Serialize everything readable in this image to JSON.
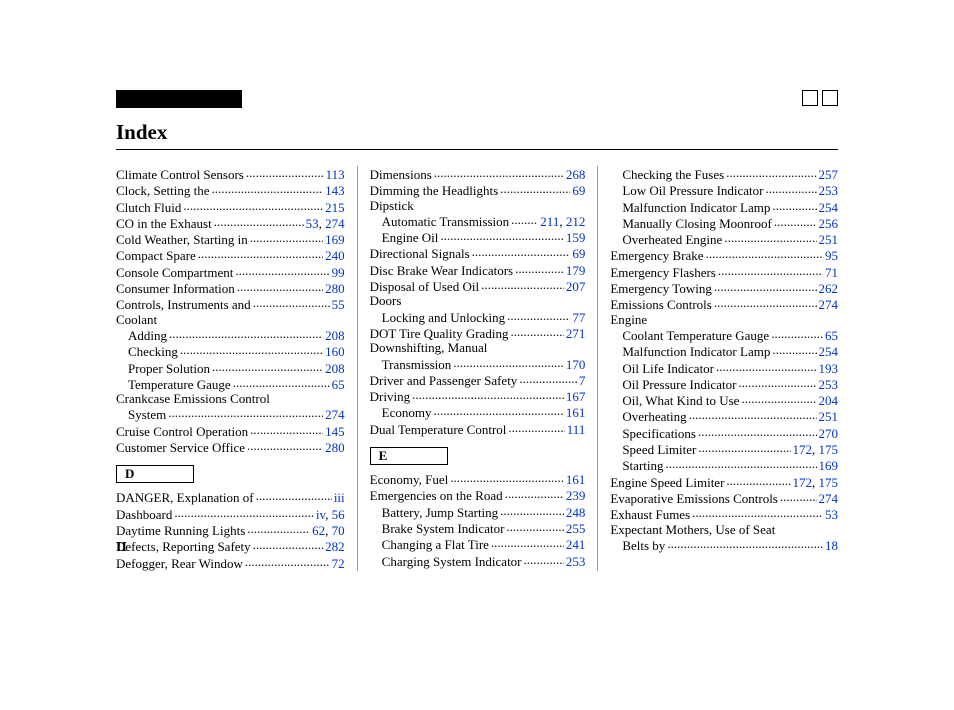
{
  "title": "Index",
  "pageNumber": "II",
  "link_color": "#0033cc",
  "columns": [
    [
      {
        "type": "entry",
        "label": "Climate Control Sensors",
        "pages": [
          "113"
        ]
      },
      {
        "type": "entry",
        "label": "Clock, Setting the",
        "pages": [
          "143"
        ]
      },
      {
        "type": "entry",
        "label": "Clutch Fluid",
        "pages": [
          "215"
        ]
      },
      {
        "type": "entry",
        "label": "CO in the Exhaust",
        "pages": [
          "53",
          "274"
        ]
      },
      {
        "type": "entry",
        "label": "Cold Weather, Starting in",
        "pages": [
          "169"
        ]
      },
      {
        "type": "entry",
        "label": "Compact Spare",
        "pages": [
          "240"
        ]
      },
      {
        "type": "entry",
        "label": "Console Compartment",
        "pages": [
          "99"
        ]
      },
      {
        "type": "entry",
        "label": "Consumer Information",
        "pages": [
          "280"
        ]
      },
      {
        "type": "entry",
        "label": "Controls, Instruments and",
        "pages": [
          "55"
        ]
      },
      {
        "type": "head",
        "label": "Coolant"
      },
      {
        "type": "entry",
        "indent": 1,
        "label": "Adding",
        "pages": [
          "208"
        ]
      },
      {
        "type": "entry",
        "indent": 1,
        "label": "Checking",
        "pages": [
          "160"
        ]
      },
      {
        "type": "entry",
        "indent": 1,
        "label": "Proper Solution",
        "pages": [
          "208"
        ]
      },
      {
        "type": "entry",
        "indent": 1,
        "label": "Temperature Gauge",
        "pages": [
          "65"
        ]
      },
      {
        "type": "head",
        "label": "Crankcase Emissions Control"
      },
      {
        "type": "entry",
        "indent": 1,
        "label": "System",
        "pages": [
          "274"
        ]
      },
      {
        "type": "entry",
        "label": "Cruise Control Operation",
        "pages": [
          "145"
        ]
      },
      {
        "type": "entry",
        "label": "Customer Service Office",
        "pages": [
          "280"
        ]
      },
      {
        "type": "section",
        "label": "D"
      },
      {
        "type": "entry",
        "label": "DANGER, Explanation of",
        "pages": [
          "iii"
        ]
      },
      {
        "type": "entry",
        "label": "Dashboard",
        "pages": [
          "iv",
          "56"
        ]
      },
      {
        "type": "entry",
        "label": "Daytime Running Lights",
        "pages": [
          "62",
          "70"
        ]
      },
      {
        "type": "entry",
        "label": "Defects, Reporting Safety",
        "pages": [
          "282"
        ]
      },
      {
        "type": "entry",
        "label": "Defogger, Rear Window",
        "pages": [
          "72"
        ]
      }
    ],
    [
      {
        "type": "entry",
        "label": "Dimensions",
        "pages": [
          "268"
        ]
      },
      {
        "type": "entry",
        "label": "Dimming the Headlights",
        "pages": [
          "69"
        ]
      },
      {
        "type": "head",
        "label": "Dipstick"
      },
      {
        "type": "entry",
        "indent": 1,
        "label": "Automatic Transmission",
        "pages": [
          "211",
          "212"
        ]
      },
      {
        "type": "entry",
        "indent": 1,
        "label": "Engine Oil",
        "pages": [
          "159"
        ]
      },
      {
        "type": "entry",
        "label": "Directional Signals",
        "pages": [
          "69"
        ]
      },
      {
        "type": "entry",
        "label": "Disc Brake Wear Indicators",
        "pages": [
          "179"
        ]
      },
      {
        "type": "entry",
        "label": "Disposal of Used Oil",
        "pages": [
          "207"
        ]
      },
      {
        "type": "head",
        "label": "Doors"
      },
      {
        "type": "entry",
        "indent": 1,
        "label": "Locking and Unlocking",
        "pages": [
          "77"
        ]
      },
      {
        "type": "entry",
        "label": "DOT Tire Quality Grading",
        "pages": [
          "271"
        ]
      },
      {
        "type": "head",
        "label": "Downshifting, Manual"
      },
      {
        "type": "entry",
        "indent": 1,
        "label": "Transmission",
        "pages": [
          "170"
        ]
      },
      {
        "type": "entry",
        "label": "Driver and Passenger Safety",
        "pages": [
          "7"
        ]
      },
      {
        "type": "entry",
        "label": "Driving",
        "pages": [
          "167"
        ]
      },
      {
        "type": "entry",
        "indent": 1,
        "label": "Economy",
        "pages": [
          "161"
        ]
      },
      {
        "type": "entry",
        "label": "Dual Temperature Control",
        "pages": [
          "111"
        ]
      },
      {
        "type": "section",
        "label": "E"
      },
      {
        "type": "entry",
        "label": "Economy, Fuel",
        "pages": [
          "161"
        ]
      },
      {
        "type": "entry",
        "label": "Emergencies on the Road",
        "pages": [
          "239"
        ]
      },
      {
        "type": "entry",
        "indent": 1,
        "label": "Battery, Jump Starting",
        "pages": [
          "248"
        ]
      },
      {
        "type": "entry",
        "indent": 1,
        "label": "Brake System Indicator",
        "pages": [
          "255"
        ]
      },
      {
        "type": "entry",
        "indent": 1,
        "label": "Changing a Flat Tire",
        "pages": [
          "241"
        ]
      },
      {
        "type": "entry",
        "indent": 1,
        "label": "Charging System Indicator",
        "pages": [
          "253"
        ]
      }
    ],
    [
      {
        "type": "entry",
        "indent": 1,
        "label": "Checking the Fuses",
        "pages": [
          "257"
        ]
      },
      {
        "type": "entry",
        "indent": 1,
        "label": "Low Oil Pressure Indicator",
        "pages": [
          "253"
        ]
      },
      {
        "type": "entry",
        "indent": 1,
        "label": "Malfunction Indicator Lamp",
        "pages": [
          "254"
        ]
      },
      {
        "type": "entry",
        "indent": 1,
        "label": "Manually Closing Moonroof",
        "pages": [
          "256"
        ]
      },
      {
        "type": "entry",
        "indent": 1,
        "label": "Overheated Engine",
        "pages": [
          "251"
        ]
      },
      {
        "type": "entry",
        "label": "Emergency Brake",
        "pages": [
          "95"
        ]
      },
      {
        "type": "entry",
        "label": "Emergency Flashers",
        "pages": [
          "71"
        ]
      },
      {
        "type": "entry",
        "label": "Emergency Towing",
        "pages": [
          "262"
        ]
      },
      {
        "type": "entry",
        "label": "Emissions Controls",
        "pages": [
          "274"
        ]
      },
      {
        "type": "head",
        "label": "Engine"
      },
      {
        "type": "entry",
        "indent": 1,
        "label": "Coolant Temperature Gauge",
        "pages": [
          "65"
        ]
      },
      {
        "type": "entry",
        "indent": 1,
        "label": "Malfunction Indicator Lamp",
        "pages": [
          "254"
        ]
      },
      {
        "type": "entry",
        "indent": 1,
        "label": "Oil Life Indicator",
        "pages": [
          "193"
        ]
      },
      {
        "type": "entry",
        "indent": 1,
        "label": "Oil Pressure Indicator",
        "pages": [
          "253"
        ]
      },
      {
        "type": "entry",
        "indent": 1,
        "label": "Oil, What Kind to Use",
        "pages": [
          "204"
        ]
      },
      {
        "type": "entry",
        "indent": 1,
        "label": "Overheating",
        "pages": [
          "251"
        ]
      },
      {
        "type": "entry",
        "indent": 1,
        "label": "Specifications",
        "pages": [
          "270"
        ]
      },
      {
        "type": "entry",
        "indent": 1,
        "label": "Speed Limiter",
        "pages": [
          "172",
          "175"
        ]
      },
      {
        "type": "entry",
        "indent": 1,
        "label": "Starting",
        "pages": [
          "169"
        ]
      },
      {
        "type": "entry",
        "label": "Engine Speed Limiter",
        "pages": [
          "172",
          "175"
        ]
      },
      {
        "type": "entry",
        "label": "Evaporative Emissions Controls",
        "pages": [
          "274"
        ]
      },
      {
        "type": "entry",
        "label": "Exhaust Fumes",
        "pages": [
          "53"
        ]
      },
      {
        "type": "head",
        "label": "Expectant Mothers, Use of Seat"
      },
      {
        "type": "entry",
        "indent": 1,
        "label": "Belts by",
        "pages": [
          "18"
        ]
      }
    ]
  ]
}
